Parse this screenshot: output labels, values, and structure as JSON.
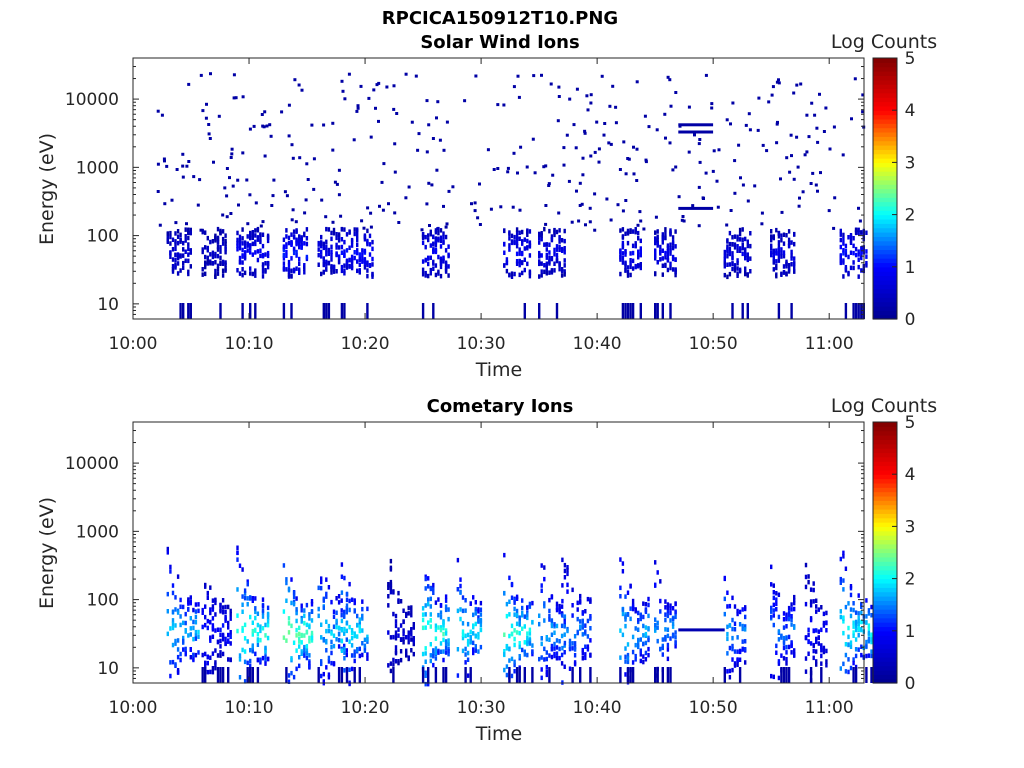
{
  "window_title": "RPCICA150912T10.PNG",
  "colors": {
    "colormap": [
      "#00008f",
      "#0000ff",
      "#00ffff",
      "#ffff00",
      "#ff0000",
      "#800000"
    ],
    "axis": "#262626",
    "background": "#ffffff"
  },
  "chart_data": [
    {
      "type": "heatmap",
      "title": "Solar Wind Ions",
      "xlabel": "Time",
      "ylabel": "Energy (eV)",
      "yscale": "log",
      "xlim": [
        "10:00",
        "11:03"
      ],
      "ylim": [
        6,
        40000
      ],
      "x_ticks": [
        "10:00",
        "10:10",
        "10:20",
        "10:30",
        "10:40",
        "10:50",
        "11:00"
      ],
      "y_ticks": [
        "10",
        "100",
        "1000",
        "10000"
      ],
      "colorbar": {
        "label": "Log Counts",
        "range": [
          0,
          5
        ],
        "ticks": [
          "0",
          "1",
          "2",
          "3",
          "4",
          "5"
        ]
      },
      "bursts": [
        {
          "t": "10:04",
          "log_counts": 0.6
        },
        {
          "t": "10:07",
          "log_counts": 0.5
        },
        {
          "t": "10:10",
          "log_counts": 0.9
        },
        {
          "t": "10:14",
          "log_counts": 1.1
        },
        {
          "t": "10:17",
          "log_counts": 0.8
        },
        {
          "t": "10:19",
          "log_counts": 1.0
        },
        {
          "t": "10:26",
          "log_counts": 0.9
        },
        {
          "t": "10:33",
          "log_counts": 0.9
        },
        {
          "t": "10:36",
          "log_counts": 0.8
        },
        {
          "t": "10:43",
          "log_counts": 0.9
        },
        {
          "t": "10:46",
          "log_counts": 0.8
        },
        {
          "t": "10:52",
          "log_counts": 0.7
        },
        {
          "t": "10:56",
          "log_counts": 0.7
        },
        {
          "t": "11:02",
          "log_counts": 1.0
        }
      ],
      "steady_lines": [
        {
          "t_start": "10:47",
          "t_end": "10:50",
          "energy_ev": 4200
        },
        {
          "t_start": "10:47",
          "t_end": "10:50",
          "energy_ev": 3300
        },
        {
          "t_start": "10:47",
          "t_end": "10:50",
          "energy_ev": 250
        }
      ]
    },
    {
      "type": "heatmap",
      "title": "Cometary Ions",
      "xlabel": "Time",
      "ylabel": "Energy (eV)",
      "yscale": "log",
      "xlim": [
        "10:00",
        "11:03"
      ],
      "ylim": [
        6,
        40000
      ],
      "x_ticks": [
        "10:00",
        "10:10",
        "10:20",
        "10:30",
        "10:40",
        "10:50",
        "11:00"
      ],
      "y_ticks": [
        "10",
        "100",
        "1000",
        "10000"
      ],
      "colorbar": {
        "label": "Log Counts",
        "range": [
          0,
          5
        ],
        "ticks": [
          "0",
          "1",
          "2",
          "3",
          "4",
          "5"
        ]
      },
      "bursts": [
        {
          "t": "10:04",
          "log_counts": 1.8
        },
        {
          "t": "10:07",
          "log_counts": 1.0
        },
        {
          "t": "10:10",
          "log_counts": 2.2
        },
        {
          "t": "10:14",
          "log_counts": 2.4
        },
        {
          "t": "10:17",
          "log_counts": 1.8
        },
        {
          "t": "10:19",
          "log_counts": 2.0
        },
        {
          "t": "10:23",
          "log_counts": 0.6
        },
        {
          "t": "10:26",
          "log_counts": 2.2
        },
        {
          "t": "10:29",
          "log_counts": 2.0
        },
        {
          "t": "10:33",
          "log_counts": 2.2
        },
        {
          "t": "10:36",
          "log_counts": 1.7
        },
        {
          "t": "10:38",
          "log_counts": 1.5
        },
        {
          "t": "10:43",
          "log_counts": 1.8
        },
        {
          "t": "10:46",
          "log_counts": 1.6
        },
        {
          "t": "10:52",
          "log_counts": 1.6
        },
        {
          "t": "10:56",
          "log_counts": 1.5
        },
        {
          "t": "10:59",
          "log_counts": 1.0
        },
        {
          "t": "11:02",
          "log_counts": 2.0
        }
      ],
      "steady_lines": [
        {
          "t_start": "10:47",
          "t_end": "10:51",
          "energy_ev": 36
        }
      ]
    }
  ]
}
